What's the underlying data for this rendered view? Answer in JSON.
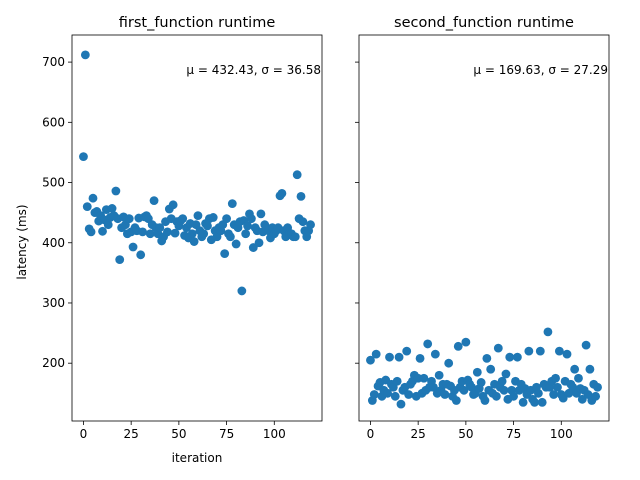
{
  "chart_data": [
    {
      "type": "scatter",
      "title": "first_function runtime",
      "xlabel": "iteration",
      "ylabel": "latency (ms)",
      "xlim": [
        -6,
        125
      ],
      "ylim": [
        104,
        745
      ],
      "x_ticks": [
        0,
        25,
        50,
        75,
        100
      ],
      "y_ticks": [
        200,
        300,
        400,
        500,
        600,
        700
      ],
      "annotation": "μ = 432.43, σ = 36.58",
      "color": "#1f77b4",
      "x": [
        0,
        1,
        2,
        3,
        4,
        5,
        6,
        7,
        8,
        9,
        10,
        11,
        12,
        13,
        14,
        15,
        16,
        17,
        18,
        19,
        20,
        21,
        22,
        23,
        24,
        25,
        26,
        27,
        28,
        29,
        30,
        31,
        32,
        33,
        34,
        35,
        36,
        37,
        38,
        39,
        40,
        41,
        42,
        43,
        44,
        45,
        46,
        47,
        48,
        49,
        50,
        51,
        52,
        53,
        54,
        55,
        56,
        57,
        58,
        59,
        60,
        61,
        62,
        63,
        64,
        65,
        66,
        67,
        68,
        69,
        70,
        71,
        72,
        73,
        74,
        75,
        76,
        77,
        78,
        79,
        80,
        81,
        82,
        83,
        84,
        85,
        86,
        87,
        88,
        89,
        90,
        91,
        92,
        93,
        94,
        95,
        96,
        97,
        98,
        99,
        100,
        101,
        102,
        103,
        104,
        105,
        106,
        107,
        108,
        109,
        110,
        111,
        112,
        113,
        114,
        115,
        116,
        117,
        118,
        119
      ],
      "y": [
        543,
        712,
        460,
        423,
        418,
        474,
        450,
        452,
        436,
        445,
        419,
        438,
        455,
        430,
        442,
        457,
        445,
        486,
        440,
        372,
        425,
        443,
        430,
        415,
        440,
        418,
        393,
        425,
        420,
        441,
        380,
        418,
        443,
        445,
        440,
        415,
        430,
        470,
        425,
        415,
        425,
        403,
        410,
        435,
        418,
        456,
        440,
        463,
        416,
        435,
        428,
        437,
        440,
        412,
        425,
        408,
        432,
        415,
        402,
        430,
        445,
        420,
        410,
        415,
        432,
        428,
        440,
        405,
        442,
        420,
        410,
        425,
        420,
        430,
        382,
        440,
        415,
        410,
        465,
        430,
        398,
        425,
        435,
        320,
        437,
        415,
        428,
        448,
        440,
        392,
        425,
        420,
        400,
        448,
        418,
        430,
        425,
        420,
        408,
        425,
        415,
        420,
        425,
        478,
        482,
        420,
        410,
        425,
        415,
        415,
        410,
        410,
        513,
        440,
        477,
        435,
        420,
        410,
        420,
        430
      ]
    },
    {
      "type": "scatter",
      "title": "second_function runtime",
      "xlabel": "",
      "ylabel": "",
      "xlim": [
        -6,
        125
      ],
      "ylim": [
        104,
        745
      ],
      "x_ticks": [
        0,
        25,
        50,
        75,
        100
      ],
      "y_ticks": [
        200,
        300,
        400,
        500,
        600,
        700
      ],
      "annotation": "μ = 169.63, σ = 27.29",
      "color": "#1f77b4",
      "x": [
        0,
        1,
        2,
        3,
        4,
        5,
        6,
        7,
        8,
        9,
        10,
        11,
        12,
        13,
        14,
        15,
        16,
        17,
        18,
        19,
        20,
        21,
        22,
        23,
        24,
        25,
        26,
        27,
        28,
        29,
        30,
        31,
        32,
        33,
        34,
        35,
        36,
        37,
        38,
        39,
        40,
        41,
        42,
        43,
        44,
        45,
        46,
        47,
        48,
        49,
        50,
        51,
        52,
        53,
        54,
        55,
        56,
        57,
        58,
        59,
        60,
        61,
        62,
        63,
        64,
        65,
        66,
        67,
        68,
        69,
        70,
        71,
        72,
        73,
        74,
        75,
        76,
        77,
        78,
        79,
        80,
        81,
        82,
        83,
        84,
        85,
        86,
        87,
        88,
        89,
        90,
        91,
        92,
        93,
        94,
        95,
        96,
        97,
        98,
        99,
        100,
        101,
        102,
        103,
        104,
        105,
        106,
        107,
        108,
        109,
        110,
        111,
        112,
        113,
        114,
        115,
        116,
        117,
        118,
        119
      ],
      "y": [
        205,
        138,
        148,
        215,
        162,
        168,
        145,
        155,
        172,
        150,
        210,
        165,
        160,
        145,
        170,
        210,
        132,
        155,
        160,
        220,
        148,
        165,
        170,
        180,
        145,
        175,
        208,
        150,
        175,
        155,
        232,
        160,
        170,
        160,
        215,
        150,
        180,
        155,
        165,
        148,
        165,
        200,
        162,
        145,
        155,
        138,
        228,
        160,
        170,
        155,
        235,
        172,
        165,
        160,
        148,
        150,
        185,
        158,
        168,
        145,
        138,
        208,
        155,
        190,
        150,
        165,
        145,
        225,
        160,
        170,
        155,
        182,
        140,
        210,
        155,
        145,
        170,
        210,
        155,
        165,
        135,
        158,
        148,
        220,
        155,
        140,
        135,
        160,
        150,
        220,
        135,
        165,
        160,
        252,
        160,
        170,
        148,
        175,
        160,
        220,
        148,
        142,
        170,
        215,
        150,
        165,
        160,
        190,
        150,
        175,
        158,
        140,
        155,
        230,
        148,
        190,
        138,
        165,
        145,
        160
      ]
    }
  ]
}
